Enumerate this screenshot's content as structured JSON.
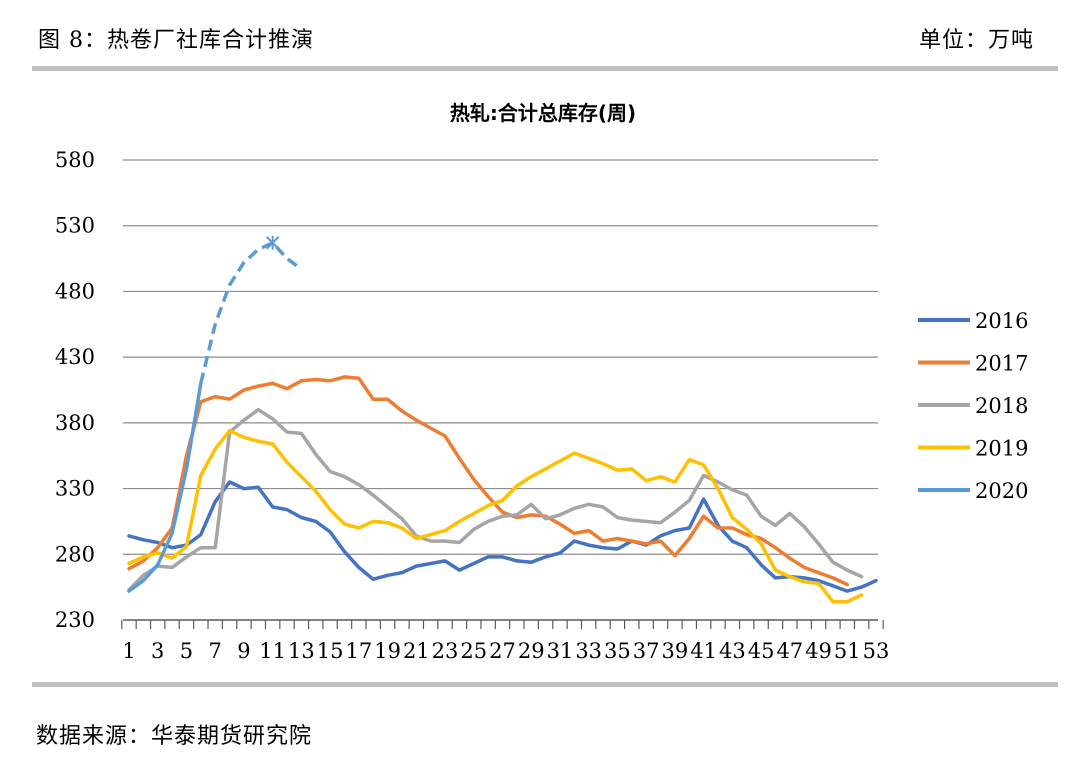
{
  "figure": {
    "title": "图 8：热卷厂社库合计推演",
    "unit": "单位：万吨",
    "source": "数据来源：华泰期货研究院"
  },
  "chart_data": {
    "type": "line",
    "title": "热轧:合计总库存(周)",
    "xlabel": "",
    "ylabel": "",
    "ylim": [
      230,
      580
    ],
    "yticks": [
      230,
      280,
      330,
      380,
      430,
      480,
      530,
      580
    ],
    "xlim": [
      1,
      53
    ],
    "xticks": [
      1,
      3,
      5,
      7,
      9,
      11,
      13,
      15,
      17,
      19,
      21,
      23,
      25,
      27,
      29,
      31,
      33,
      35,
      37,
      39,
      41,
      43,
      45,
      47,
      49,
      51,
      53
    ],
    "grid": "horizontal",
    "legend_position": "right",
    "series": [
      {
        "name": "2016",
        "color": "#4472c4",
        "x": [
          1,
          2,
          3,
          4,
          5,
          6,
          7,
          8,
          9,
          10,
          11,
          12,
          13,
          14,
          15,
          16,
          17,
          18,
          19,
          20,
          21,
          22,
          23,
          24,
          25,
          26,
          27,
          28,
          29,
          30,
          31,
          32,
          33,
          34,
          35,
          36,
          37,
          38,
          39,
          40,
          41,
          42,
          43,
          44,
          45,
          46,
          47,
          48,
          49,
          50,
          51,
          52,
          53
        ],
        "y": [
          294,
          291,
          289,
          285,
          287,
          295,
          320,
          335,
          330,
          331,
          316,
          314,
          308,
          305,
          297,
          282,
          270,
          261,
          264,
          266,
          271,
          273,
          275,
          268,
          273,
          278,
          278,
          275,
          274,
          278,
          281,
          290,
          287,
          285,
          284,
          290,
          287,
          294,
          298,
          300,
          322,
          302,
          290,
          285,
          272,
          262,
          263,
          262,
          260,
          256,
          252,
          255,
          260
        ]
      },
      {
        "name": "2017",
        "color": "#ed7d31",
        "x": [
          1,
          2,
          3,
          4,
          5,
          6,
          7,
          8,
          9,
          10,
          11,
          12,
          13,
          14,
          15,
          16,
          17,
          18,
          19,
          20,
          21,
          22,
          23,
          24,
          25,
          26,
          27,
          28,
          29,
          30,
          31,
          32,
          33,
          34,
          35,
          36,
          37,
          38,
          39,
          40,
          41,
          42,
          43,
          44,
          45,
          46,
          47,
          48,
          49,
          50,
          51
        ],
        "y": [
          269,
          275,
          285,
          300,
          355,
          396,
          400,
          398,
          405,
          408,
          410,
          406,
          412,
          413,
          412,
          415,
          414,
          398,
          398,
          389,
          382,
          376,
          370,
          353,
          337,
          324,
          312,
          308,
          310,
          309,
          303,
          296,
          298,
          290,
          292,
          290,
          288,
          290,
          279,
          292,
          309,
          300,
          300,
          295,
          292,
          285,
          277,
          270,
          266,
          262,
          257
        ]
      },
      {
        "name": "2018",
        "color": "#a5a5a5",
        "x": [
          1,
          2,
          3,
          4,
          5,
          6,
          7,
          8,
          9,
          10,
          11,
          12,
          13,
          14,
          15,
          16,
          17,
          18,
          19,
          20,
          21,
          22,
          23,
          24,
          25,
          26,
          27,
          28,
          29,
          30,
          31,
          32,
          33,
          34,
          35,
          36,
          37,
          38,
          39,
          40,
          41,
          42,
          43,
          44,
          45,
          46,
          47,
          48,
          49,
          50,
          51,
          52
        ],
        "y": [
          253,
          264,
          271,
          270,
          278,
          285,
          285,
          373,
          382,
          390,
          383,
          373,
          372,
          356,
          343,
          339,
          333,
          325,
          316,
          307,
          294,
          290,
          290,
          289,
          299,
          305,
          309,
          310,
          318,
          307,
          310,
          315,
          318,
          316,
          308,
          306,
          305,
          304,
          312,
          321,
          340,
          335,
          329,
          325,
          309,
          302,
          311,
          301,
          288,
          274,
          268,
          263
        ]
      },
      {
        "name": "2019",
        "color": "#ffc000",
        "x": [
          1,
          2,
          3,
          4,
          5,
          6,
          7,
          8,
          9,
          10,
          11,
          12,
          13,
          14,
          15,
          16,
          17,
          18,
          19,
          20,
          21,
          22,
          23,
          24,
          25,
          26,
          27,
          28,
          29,
          30,
          31,
          32,
          33,
          34,
          35,
          36,
          37,
          38,
          39,
          40,
          41,
          42,
          43,
          44,
          45,
          46,
          47,
          48,
          49,
          50,
          51,
          52
        ],
        "y": [
          273,
          278,
          281,
          277,
          286,
          340,
          360,
          374,
          369,
          366,
          364,
          350,
          339,
          328,
          314,
          303,
          300,
          305,
          304,
          300,
          292,
          295,
          298,
          305,
          311,
          317,
          321,
          332,
          339,
          345,
          351,
          357,
          353,
          349,
          344,
          345,
          336,
          339,
          335,
          352,
          348,
          330,
          308,
          299,
          288,
          268,
          263,
          259,
          258,
          244,
          244,
          249
        ]
      },
      {
        "name": "2020",
        "color": "#5b9bd5",
        "x": [
          1,
          2,
          3,
          4,
          5,
          6
        ],
        "y": [
          252,
          260,
          272,
          296,
          345,
          410
        ],
        "forecast": {
          "x": [
            6,
            7,
            8,
            9,
            10,
            11,
            12,
            13
          ],
          "y": [
            410,
            455,
            485,
            502,
            512,
            517,
            505,
            497
          ],
          "marker_x": 11
        }
      }
    ]
  }
}
